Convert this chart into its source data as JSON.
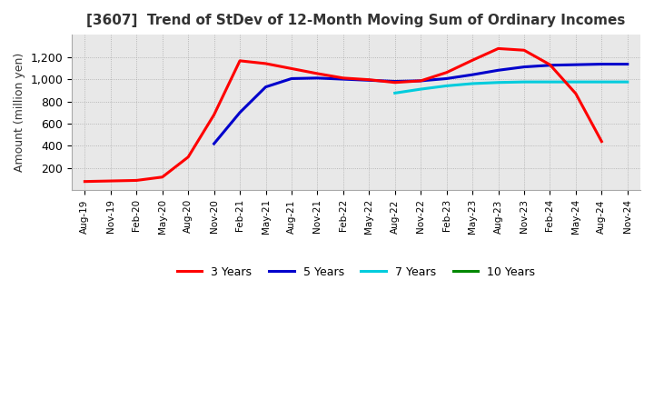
{
  "title": "[3607]  Trend of StDev of 12-Month Moving Sum of Ordinary Incomes",
  "ylabel": "Amount (million yen)",
  "ylim": [
    0,
    1400
  ],
  "yticks": [
    200,
    400,
    600,
    800,
    1000,
    1200
  ],
  "line_colors": {
    "3y": "#ff0000",
    "5y": "#0000cc",
    "7y": "#00ccdd",
    "10y": "#008800"
  },
  "legend_labels": [
    "3 Years",
    "5 Years",
    "7 Years",
    "10 Years"
  ],
  "background_color": "#ffffff",
  "grid_color": "#aaaaaa",
  "x_labels": [
    "Aug-19",
    "Nov-19",
    "Feb-20",
    "May-20",
    "Aug-20",
    "Nov-20",
    "Feb-21",
    "May-21",
    "Aug-21",
    "Nov-21",
    "Feb-22",
    "May-22",
    "Aug-22",
    "Nov-22",
    "Feb-23",
    "May-23",
    "Aug-23",
    "Nov-23",
    "Feb-24",
    "May-24",
    "Aug-24",
    "Nov-24"
  ],
  "series_3y": [
    80,
    85,
    90,
    120,
    300,
    680,
    1165,
    1140,
    1095,
    1050,
    1010,
    995,
    970,
    985,
    1060,
    1170,
    1275,
    1260,
    1130,
    870,
    440,
    null
  ],
  "series_5y": [
    null,
    null,
    null,
    null,
    null,
    420,
    700,
    930,
    1005,
    1010,
    1000,
    990,
    980,
    985,
    1005,
    1040,
    1080,
    1110,
    1125,
    1130,
    1135,
    1135
  ],
  "series_7y": [
    null,
    null,
    null,
    null,
    null,
    null,
    null,
    null,
    null,
    null,
    null,
    null,
    875,
    910,
    940,
    960,
    970,
    975,
    975,
    975,
    975,
    975
  ],
  "series_10y": [
    null,
    null,
    null,
    null,
    null,
    null,
    null,
    null,
    null,
    null,
    null,
    null,
    null,
    null,
    null,
    null,
    null,
    null,
    null,
    null,
    null,
    null
  ]
}
